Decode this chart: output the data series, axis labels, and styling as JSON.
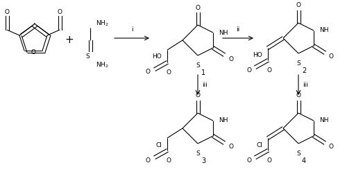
{
  "figsize": [
    5.0,
    2.48
  ],
  "dpi": 100,
  "background": "#ffffff",
  "lw": 0.8,
  "fs": 6.5,
  "compounds": [
    "1",
    "2",
    "3",
    "4"
  ]
}
